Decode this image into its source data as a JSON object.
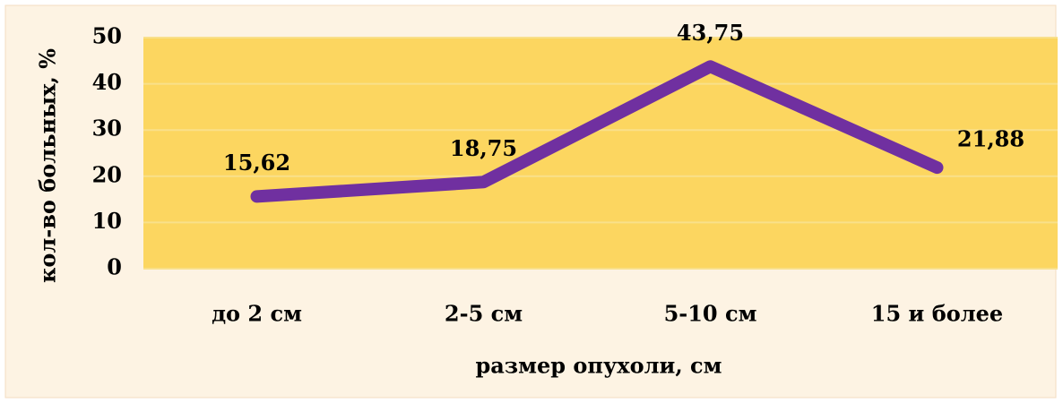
{
  "chart_data": {
    "type": "line",
    "categories": [
      "до 2 см",
      "2-5 см",
      "5-10 см",
      "15 и более"
    ],
    "series": [
      {
        "name": null,
        "color": "#7030a0",
        "values": [
          15.62,
          18.75,
          43.75,
          21.88
        ],
        "value_labels": [
          "15,62",
          "18,75",
          "43,75",
          "21,88"
        ]
      }
    ],
    "ylim": [
      0,
      50
    ],
    "yticks": [
      0,
      10,
      20,
      30,
      40,
      50
    ],
    "grid": true,
    "xlabel": "размер опухоли, см",
    "ylabel": "кол-во больных, %"
  }
}
